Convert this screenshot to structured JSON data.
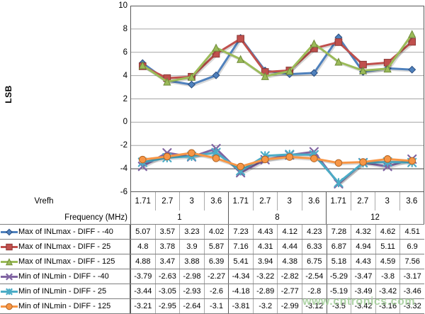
{
  "watermark": {
    "text": "www.cntronics.com",
    "color": "#9ccb92"
  },
  "chart_data": {
    "type": "line",
    "title": "",
    "ylabel": "LSB",
    "ylim": [
      -6,
      10
    ],
    "ytick_step": 2,
    "grid": true,
    "legend_position": "table-left",
    "x_axis": {
      "vrefh_label": "Vrefh",
      "freq_label": "Frequency (MHz)",
      "vrefh": [
        1.71,
        2.7,
        3,
        3.6,
        1.71,
        2.7,
        3,
        3.6,
        1.71,
        2.7,
        3,
        3.6
      ],
      "freq_groups": [
        {
          "label": "1",
          "span": 4
        },
        {
          "label": "8",
          "span": 4
        },
        {
          "label": "12",
          "span": 4
        }
      ]
    },
    "series": [
      {
        "name": "Max of INLmax - DIFF - -40",
        "marker": "diamond",
        "color": "#4F81BD",
        "marker_edge": "#2a4d7e",
        "values": [
          5.07,
          3.57,
          3.23,
          4.02,
          7.23,
          4.43,
          4.12,
          4.23,
          7.28,
          4.32,
          4.62,
          4.51
        ]
      },
      {
        "name": "Max of INLmax - DIFF - 25",
        "marker": "square",
        "color": "#C0504D",
        "marker_edge": "#8c3836",
        "values": [
          4.8,
          3.78,
          3.9,
          5.87,
          7.16,
          4.31,
          4.44,
          6.33,
          6.87,
          4.94,
          5.11,
          6.9
        ]
      },
      {
        "name": "Max of INLmax - DIFF - 125",
        "marker": "triangle",
        "color": "#9BBB59",
        "marker_edge": "#6f8a39",
        "values": [
          4.88,
          3.47,
          3.88,
          6.39,
          5.41,
          3.94,
          4.38,
          6.75,
          5.18,
          4.43,
          4.59,
          7.56
        ]
      },
      {
        "name": "Min of INLmin - DIFF - -40",
        "marker": "x",
        "color": "#8064A2",
        "marker_edge": "#5d4a78",
        "values": [
          -3.79,
          -2.63,
          -2.98,
          -2.27,
          -4.34,
          -3.22,
          -2.82,
          -2.54,
          -5.29,
          -3.47,
          -3.8,
          -3.17
        ]
      },
      {
        "name": "Min of INLmin - DIFF - 25",
        "marker": "star",
        "color": "#4BACC6",
        "marker_edge": "#35798c",
        "values": [
          -3.44,
          -3.05,
          -2.93,
          -2.6,
          -4.18,
          -2.89,
          -2.77,
          -2.8,
          -5.19,
          -3.49,
          -3.42,
          -3.46
        ]
      },
      {
        "name": "Min of INLmin - DIFF - 125",
        "marker": "circle",
        "color": "#F79646",
        "marker_edge": "#b16322",
        "values": [
          -3.21,
          -2.95,
          -2.64,
          -3.1,
          -3.81,
          -3.2,
          -2.99,
          -3.12,
          -3.5,
          -3.42,
          -3.16,
          -3.32
        ]
      }
    ]
  }
}
